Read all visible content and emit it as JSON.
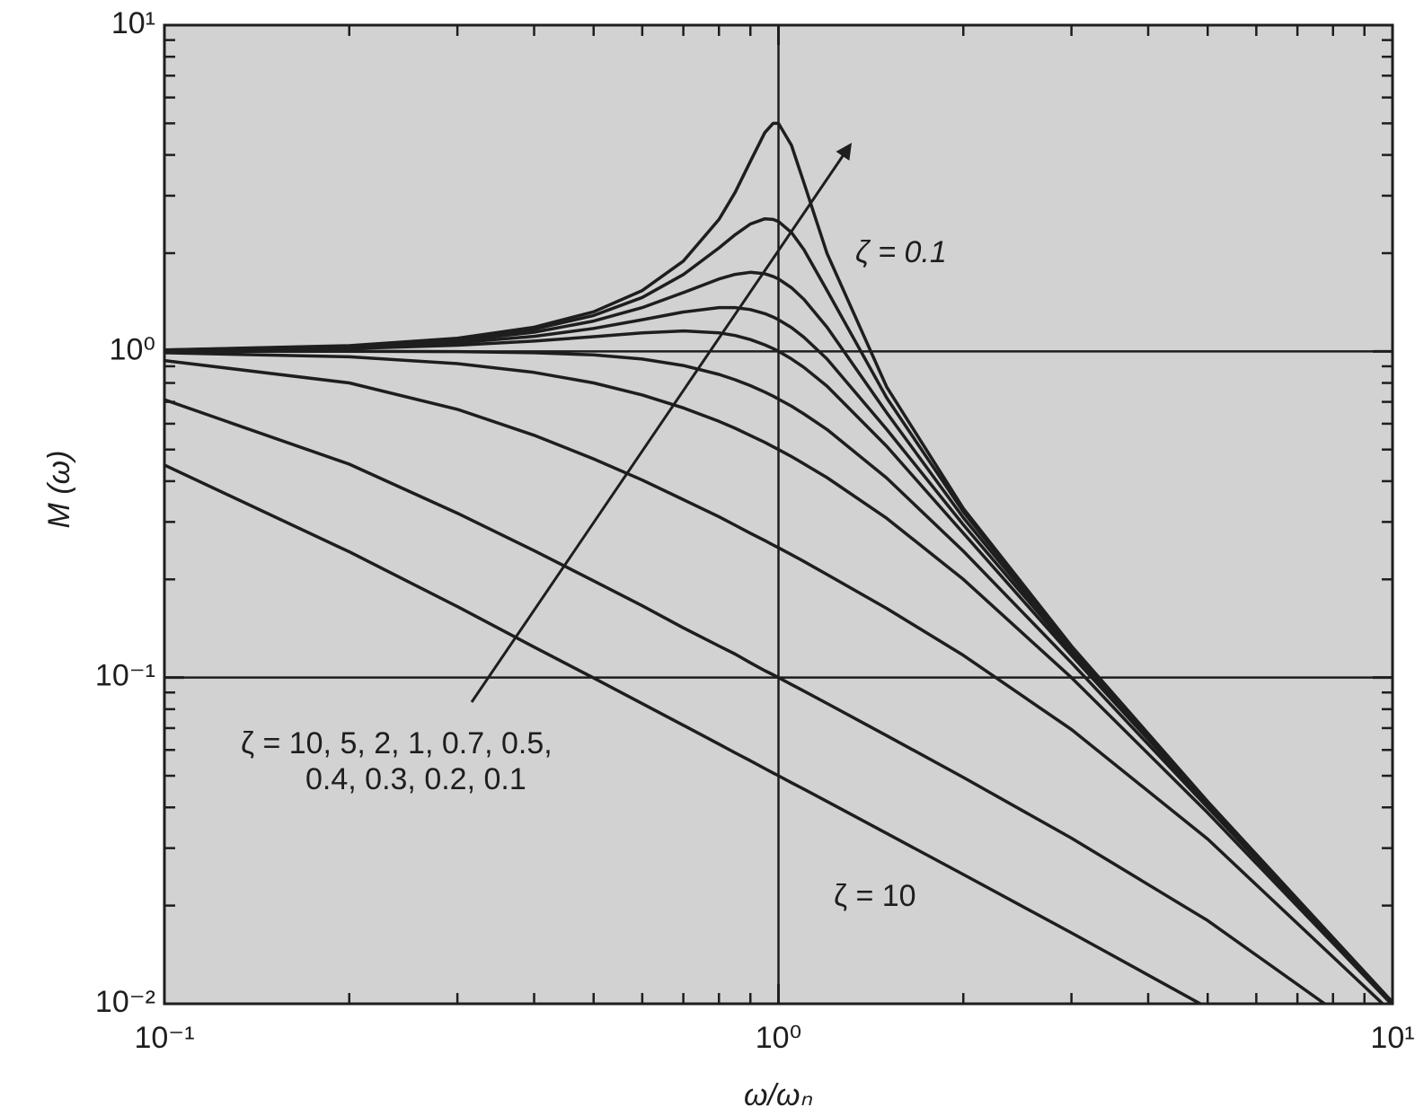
{
  "chart_data": {
    "type": "line",
    "xlabel": "ω/ωₙ",
    "ylabel": "M (ω)",
    "xscale": "log",
    "yscale": "log",
    "xlim": [
      0.1,
      10
    ],
    "ylim": [
      0.01,
      10
    ],
    "xticks": [
      {
        "value": 0.1,
        "label": "10⁻¹"
      },
      {
        "value": 1,
        "label": "10⁰"
      },
      {
        "value": 10,
        "label": "10¹"
      }
    ],
    "yticks": [
      {
        "value": 0.01,
        "label": "10⁻²"
      },
      {
        "value": 0.1,
        "label": "10⁻¹"
      },
      {
        "value": 1,
        "label": "10⁰"
      },
      {
        "value": 10,
        "label": "10¹"
      }
    ],
    "xminor": [
      0.2,
      0.3,
      0.4,
      0.5,
      0.6,
      0.7,
      0.8,
      0.9,
      2,
      3,
      4,
      5,
      6,
      7,
      8,
      9
    ],
    "yminor": [
      0.02,
      0.03,
      0.04,
      0.05,
      0.06,
      0.07,
      0.08,
      0.09,
      0.2,
      0.3,
      0.4,
      0.5,
      0.6,
      0.7,
      0.8,
      0.9,
      2,
      3,
      4,
      5,
      6,
      7,
      8,
      9
    ],
    "grid": true,
    "color": "#1e1e1e",
    "x": [
      0.1,
      0.2,
      0.3,
      0.4,
      0.5,
      0.6,
      0.7,
      0.8,
      0.85,
      0.9,
      0.95,
      0.98,
      1,
      1.05,
      1.1,
      1.2,
      1.5,
      2,
      3,
      5,
      10
    ],
    "series": [
      {
        "values": [
          0.448,
          0.243,
          0.165,
          0.124,
          0.0997,
          0.0832,
          0.0714,
          0.0625,
          0.0588,
          0.0556,
          0.0526,
          0.051,
          0.05,
          0.0476,
          0.0455,
          0.0417,
          0.0333,
          0.0249,
          0.0165,
          0.00972,
          0.00448
        ]
      },
      {
        "values": [
          0.711,
          0.451,
          0.319,
          0.245,
          0.198,
          0.166,
          0.142,
          0.125,
          0.118,
          0.111,
          0.105,
          0.102,
          0.1,
          0.0952,
          0.0909,
          0.0833,
          0.0664,
          0.0494,
          0.0322,
          0.018,
          0.00711
        ]
      },
      {
        "values": [
          0.937,
          0.8,
          0.664,
          0.553,
          0.468,
          0.403,
          0.351,
          0.311,
          0.293,
          0.277,
          0.263,
          0.255,
          0.25,
          0.238,
          0.227,
          0.207,
          0.163,
          0.117,
          0.0693,
          0.032,
          0.00937
        ]
      },
      {
        "values": [
          0.99,
          0.962,
          0.917,
          0.862,
          0.8,
          0.735,
          0.671,
          0.61,
          0.581,
          0.552,
          0.526,
          0.51,
          0.5,
          0.476,
          0.452,
          0.41,
          0.308,
          0.2,
          0.1,
          0.0385,
          0.0099
        ]
      },
      {
        "values": [
          1.0,
          1.0,
          0.998,
          0.99,
          0.975,
          0.947,
          0.905,
          0.85,
          0.818,
          0.785,
          0.75,
          0.729,
          0.714,
          0.679,
          0.643,
          0.576,
          0.409,
          0.244,
          0.111,
          0.04,
          0.01
        ]
      },
      {
        "values": [
          1.005,
          1.02,
          1.044,
          1.075,
          1.109,
          1.14,
          1.155,
          1.14,
          1.118,
          1.087,
          1.047,
          1.02,
          1.0,
          0.948,
          0.893,
          0.782,
          0.512,
          0.277,
          0.117,
          0.0408,
          0.01
        ]
      },
      {
        "values": [
          1.007,
          1.027,
          1.063,
          1.112,
          1.176,
          1.25,
          1.32,
          1.362,
          1.362,
          1.343,
          1.305,
          1.274,
          1.25,
          1.182,
          1.105,
          0.947,
          0.577,
          0.294,
          0.12,
          0.0411,
          0.0101
        ]
      },
      {
        "values": [
          1.008,
          1.034,
          1.078,
          1.145,
          1.238,
          1.362,
          1.514,
          1.667,
          1.722,
          1.747,
          1.729,
          1.697,
          1.667,
          1.567,
          1.444,
          1.185,
          0.649,
          0.309,
          0.122,
          0.0413,
          0.0101
        ]
      },
      {
        "values": [
          1.009,
          1.038,
          1.089,
          1.169,
          1.288,
          1.463,
          1.719,
          2.076,
          2.279,
          2.457,
          2.549,
          2.538,
          2.5,
          2.313,
          2.051,
          1.536,
          0.721,
          0.322,
          0.124,
          0.0415,
          0.0101
        ]
      },
      {
        "values": [
          1.01,
          1.041,
          1.097,
          1.185,
          1.322,
          1.536,
          1.891,
          2.538,
          3.073,
          3.821,
          4.683,
          5.0,
          5.0,
          4.28,
          3.288,
          1.995,
          0.778,
          0.33,
          0.125,
          0.0417,
          0.0101
        ]
      }
    ],
    "annotations": [
      "ζ = 0.1",
      "ζ = 10",
      "ζ = 10, 5, 2, 1, 0.7, 0.5,",
      "0.4, 0.3, 0.2, 0.1"
    ]
  }
}
